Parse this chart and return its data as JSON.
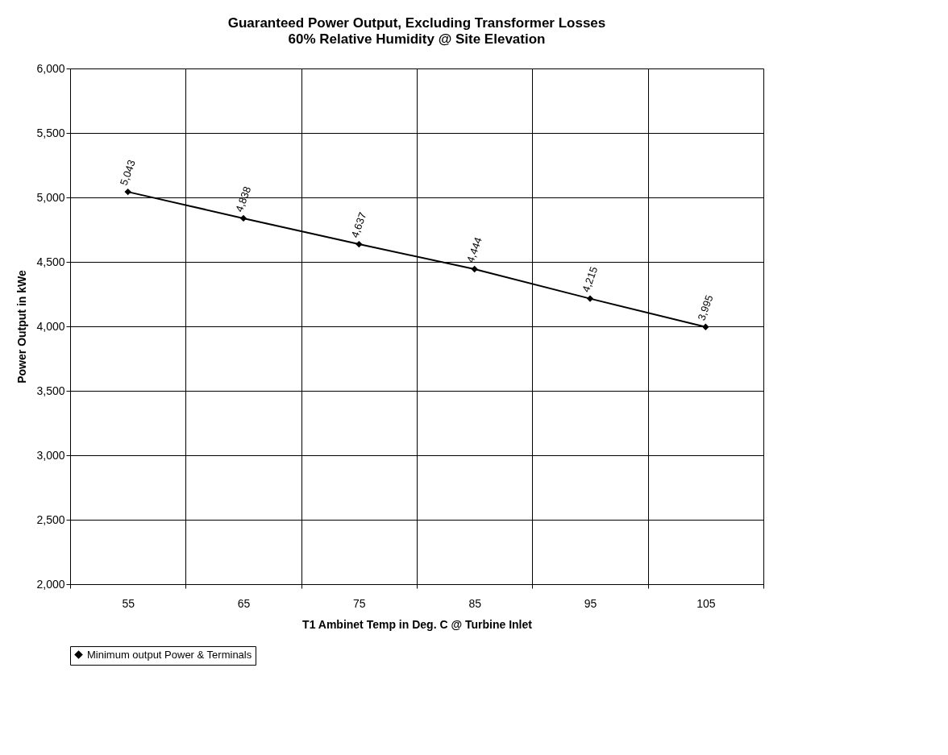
{
  "chart_data": {
    "type": "line",
    "title": "Guaranteed Power Output, Excluding Transformer Losses",
    "subtitle": "60% Relative Humidity @ Site Elevation",
    "xlabel": "T1 Ambinet Temp in Deg. C @ Turbine Inlet",
    "ylabel": "Power Output in kWe",
    "categories": [
      "55",
      "65",
      "75",
      "85",
      "95",
      "105"
    ],
    "series": [
      {
        "name": "Minimum output Power & Terminals",
        "color": "#000000",
        "values": [
          5043,
          4838,
          4637,
          4444,
          4215,
          3995
        ]
      }
    ],
    "value_labels": [
      "5,043",
      "4,838",
      "4,637",
      "4,444",
      "4,215",
      "3,995"
    ],
    "ylim": [
      2000,
      6000
    ],
    "yticks": [
      {
        "value": 2000,
        "label": "2,000"
      },
      {
        "value": 2500,
        "label": "2,500"
      },
      {
        "value": 3000,
        "label": "3,000"
      },
      {
        "value": 3500,
        "label": "3,500"
      },
      {
        "value": 4000,
        "label": "4,000"
      },
      {
        "value": 4500,
        "label": "4,500"
      },
      {
        "value": 5000,
        "label": "5,000"
      },
      {
        "value": 5500,
        "label": "5,500"
      },
      {
        "value": 6000,
        "label": "6,000"
      }
    ],
    "grid": true,
    "legend": "bottom left",
    "marker": "diamond",
    "line_style": "solid"
  }
}
